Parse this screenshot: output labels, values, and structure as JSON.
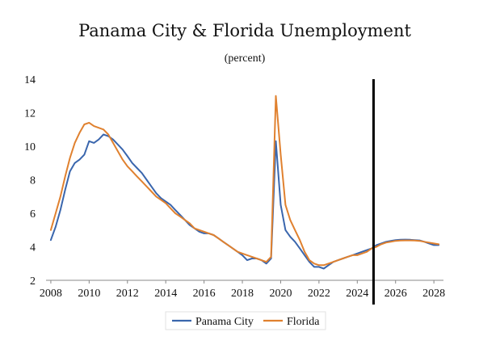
{
  "chart_data": {
    "type": "line",
    "title": "Panama City & Florida Unemployment",
    "subtitle": "(percent)",
    "xlabel": "",
    "ylabel": "",
    "xlim": [
      2007.75,
      2028.5
    ],
    "ylim": [
      2,
      14
    ],
    "xticks": [
      "2008",
      "2010",
      "2012",
      "2014",
      "2016",
      "2018",
      "2020",
      "2022",
      "2024",
      "2026",
      "2028"
    ],
    "yticks": [
      "2",
      "4",
      "6",
      "8",
      "10",
      "12",
      "14"
    ],
    "grid": false,
    "legend_position": "bottom",
    "forecast_marker_x": 2024.85,
    "colors": {
      "panama_city": "#3a66ad",
      "florida": "#e0812f",
      "marker": "#000000"
    },
    "x": [
      2008.0,
      2008.25,
      2008.5,
      2008.75,
      2009.0,
      2009.25,
      2009.5,
      2009.75,
      2010.0,
      2010.25,
      2010.5,
      2010.75,
      2011.0,
      2011.25,
      2011.5,
      2011.75,
      2012.0,
      2012.25,
      2012.5,
      2012.75,
      2013.0,
      2013.25,
      2013.5,
      2013.75,
      2014.0,
      2014.25,
      2014.5,
      2014.75,
      2015.0,
      2015.25,
      2015.5,
      2015.75,
      2016.0,
      2016.25,
      2016.5,
      2016.75,
      2017.0,
      2017.25,
      2017.5,
      2017.75,
      2018.0,
      2018.25,
      2018.5,
      2018.75,
      2019.0,
      2019.25,
      2019.5,
      2019.75,
      2020.0,
      2020.25,
      2020.5,
      2020.75,
      2021.0,
      2021.25,
      2021.5,
      2021.75,
      2022.0,
      2022.25,
      2022.5,
      2022.75,
      2023.0,
      2023.25,
      2023.5,
      2023.75,
      2024.0,
      2024.25,
      2024.5,
      2024.75,
      2025.0,
      2025.25,
      2025.5,
      2025.75,
      2026.0,
      2026.25,
      2026.5,
      2026.75,
      2027.0,
      2027.25,
      2027.5,
      2027.75,
      2028.0,
      2028.25
    ],
    "series": [
      {
        "name": "Panama City",
        "values": [
          4.4,
          5.2,
          6.2,
          7.4,
          8.5,
          9.0,
          9.2,
          9.5,
          10.3,
          10.2,
          10.4,
          10.7,
          10.6,
          10.4,
          10.1,
          9.8,
          9.4,
          9.0,
          8.7,
          8.4,
          8.0,
          7.6,
          7.2,
          6.9,
          6.7,
          6.5,
          6.2,
          5.9,
          5.6,
          5.3,
          5.1,
          4.9,
          4.8,
          4.8,
          4.7,
          4.5,
          4.3,
          4.1,
          3.9,
          3.7,
          3.5,
          3.2,
          3.3,
          3.3,
          3.2,
          3.0,
          3.3,
          10.3,
          6.5,
          5.0,
          4.6,
          4.3,
          3.9,
          3.5,
          3.1,
          2.8,
          2.8,
          2.7,
          2.9,
          3.1,
          3.2,
          3.3,
          3.4,
          3.5,
          3.6,
          3.7,
          3.8,
          3.9,
          4.1,
          4.2,
          4.3,
          4.35,
          4.4,
          4.42,
          4.43,
          4.42,
          4.4,
          4.38,
          4.3,
          4.2,
          4.1,
          4.1
        ]
      },
      {
        "name": "Florida",
        "values": [
          5.0,
          6.0,
          7.0,
          8.2,
          9.3,
          10.2,
          10.8,
          11.3,
          11.4,
          11.2,
          11.1,
          11.0,
          10.7,
          10.2,
          9.7,
          9.2,
          8.8,
          8.5,
          8.2,
          7.9,
          7.6,
          7.3,
          7.0,
          6.8,
          6.6,
          6.3,
          6.0,
          5.8,
          5.6,
          5.4,
          5.1,
          5.0,
          4.9,
          4.8,
          4.7,
          4.5,
          4.3,
          4.1,
          3.9,
          3.7,
          3.6,
          3.5,
          3.4,
          3.3,
          3.2,
          3.1,
          3.4,
          13.0,
          9.5,
          6.5,
          5.6,
          5.0,
          4.4,
          3.7,
          3.2,
          3.0,
          2.9,
          2.9,
          3.0,
          3.1,
          3.2,
          3.3,
          3.4,
          3.5,
          3.5,
          3.6,
          3.7,
          3.9,
          4.0,
          4.15,
          4.25,
          4.3,
          4.35,
          4.37,
          4.38,
          4.38,
          4.37,
          4.35,
          4.3,
          4.25,
          4.2,
          4.15
        ]
      }
    ]
  }
}
